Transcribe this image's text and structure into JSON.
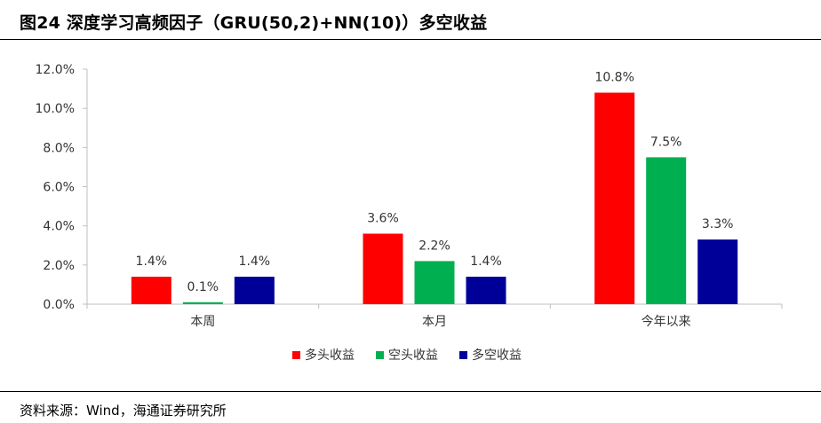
{
  "header": {
    "title": "图24 深度学习高频因子（GRU(50,2)+NN(10)）多空收益"
  },
  "footer": {
    "source": "资料来源：Wind，海通证券研究所"
  },
  "chart_data": {
    "type": "bar",
    "title": "",
    "xlabel": "",
    "ylabel": "",
    "categories": [
      "本周",
      "本月",
      "今年以来"
    ],
    "series": [
      {
        "name": "多头收益",
        "color": "#ff0000",
        "values": [
          1.4,
          3.6,
          10.8
        ],
        "labels": [
          "1.4%",
          "3.6%",
          "10.8%"
        ]
      },
      {
        "name": "空头收益",
        "color": "#00b050",
        "values": [
          0.1,
          2.2,
          7.5
        ],
        "labels": [
          "0.1%",
          "2.2%",
          "7.5%"
        ]
      },
      {
        "name": "多空收益",
        "color": "#000099",
        "values": [
          1.4,
          1.4,
          3.3
        ],
        "labels": [
          "1.4%",
          "1.4%",
          "3.3%"
        ]
      }
    ],
    "ylim": [
      0,
      12
    ],
    "yticks": [
      0,
      2,
      4,
      6,
      8,
      10,
      12
    ],
    "ytick_labels": [
      "0.0%",
      "2.0%",
      "4.0%",
      "6.0%",
      "8.0%",
      "10.0%",
      "12.0%"
    ],
    "grid": false,
    "legend_position": "bottom-center",
    "data_labels": true
  }
}
